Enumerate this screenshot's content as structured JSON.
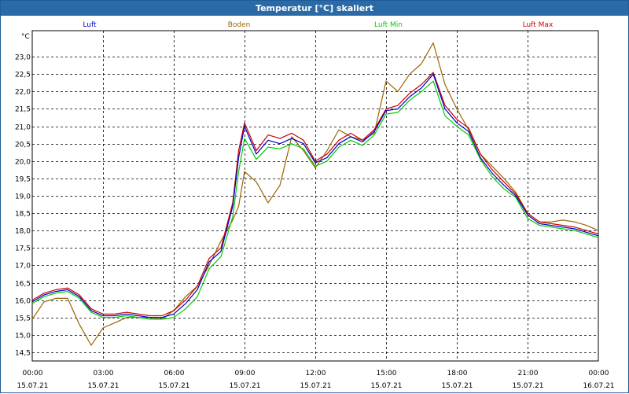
{
  "title": "Temperatur [°C] skaliert",
  "chart_data": {
    "type": "line",
    "title": "Temperatur [°C] skaliert",
    "ylabel": "°C",
    "ylim": [
      14.25,
      23.75
    ],
    "xlim": [
      0,
      24
    ],
    "y_ticks": [
      "14,5",
      "15,0",
      "15,5",
      "16,0",
      "16,5",
      "17,0",
      "17,5",
      "18,0",
      "18,5",
      "19,0",
      "19,5",
      "20,0",
      "20,5",
      "21,0",
      "21,5",
      "22,0",
      "22,5",
      "23,0"
    ],
    "x_ticks": [
      {
        "time": "00:00",
        "date": "15.07.21"
      },
      {
        "time": "03:00",
        "date": "15.07.21"
      },
      {
        "time": "06:00",
        "date": "15.07.21"
      },
      {
        "time": "09:00",
        "date": "15.07.21"
      },
      {
        "time": "12:00",
        "date": "15.07.21"
      },
      {
        "time": "15:00",
        "date": "15.07.21"
      },
      {
        "time": "18:00",
        "date": "15.07.21"
      },
      {
        "time": "21:00",
        "date": "15.07.21"
      },
      {
        "time": "00:00",
        "date": "16.07.21"
      }
    ],
    "series": [
      {
        "name": "Luft",
        "color": "#0000cc",
        "x": [
          0,
          0.5,
          1,
          1.5,
          2,
          2.5,
          3,
          3.5,
          4,
          4.5,
          5,
          5.5,
          6,
          6.5,
          7,
          7.5,
          8,
          8.5,
          8.75,
          9,
          9.5,
          10,
          10.5,
          11,
          11.5,
          12,
          12.5,
          13,
          13.5,
          14,
          14.5,
          15,
          15.5,
          16,
          16.5,
          17,
          17.5,
          18,
          18.5,
          19,
          19.5,
          20,
          20.5,
          21,
          21.5,
          22,
          22.5,
          23,
          23.5,
          24
        ],
        "values": [
          15.95,
          16.15,
          16.25,
          16.3,
          16.1,
          15.7,
          15.55,
          15.55,
          15.6,
          15.55,
          15.5,
          15.5,
          15.6,
          15.9,
          16.3,
          17.1,
          17.4,
          18.7,
          20.1,
          21.0,
          20.2,
          20.6,
          20.5,
          20.65,
          20.5,
          19.95,
          20.1,
          20.5,
          20.7,
          20.55,
          20.85,
          21.45,
          21.5,
          21.85,
          22.1,
          22.5,
          21.5,
          21.1,
          20.85,
          20.1,
          19.65,
          19.3,
          19.0,
          18.45,
          18.2,
          18.15,
          18.1,
          18.05,
          17.95,
          17.85
        ]
      },
      {
        "name": "Boden",
        "color": "#996600",
        "x": [
          0,
          0.5,
          1,
          1.5,
          2,
          2.5,
          3,
          3.5,
          4,
          4.5,
          5,
          5.5,
          6,
          6.5,
          7,
          7.5,
          8,
          8.5,
          8.75,
          9,
          9.5,
          10,
          10.5,
          11,
          11.5,
          12,
          12.5,
          13,
          13.5,
          14,
          14.5,
          15,
          15.5,
          16,
          16.5,
          17,
          17.5,
          18,
          18.5,
          19,
          19.5,
          20,
          20.5,
          21,
          21.5,
          22,
          22.5,
          23,
          23.5,
          24
        ],
        "values": [
          15.45,
          15.95,
          16.05,
          16.05,
          15.3,
          14.7,
          15.2,
          15.35,
          15.5,
          15.5,
          15.5,
          15.45,
          15.7,
          16.1,
          16.4,
          17.0,
          17.7,
          18.3,
          18.7,
          19.7,
          19.4,
          18.8,
          19.3,
          20.7,
          20.3,
          19.8,
          20.3,
          20.9,
          20.7,
          20.6,
          20.8,
          22.3,
          22.0,
          22.5,
          22.8,
          23.4,
          22.2,
          21.5,
          20.9,
          20.2,
          19.85,
          19.5,
          19.1,
          18.5,
          18.25,
          18.25,
          18.3,
          18.25,
          18.15,
          18.0
        ]
      },
      {
        "name": "Luft Min",
        "color": "#00cc00",
        "x": [
          0,
          0.5,
          1,
          1.5,
          2,
          2.5,
          3,
          3.5,
          4,
          4.5,
          5,
          5.5,
          6,
          6.5,
          7,
          7.5,
          8,
          8.5,
          8.75,
          9,
          9.5,
          10,
          10.5,
          11,
          11.5,
          12,
          12.5,
          13,
          13.5,
          14,
          14.5,
          15,
          15.5,
          16,
          16.5,
          17,
          17.5,
          18,
          18.5,
          19,
          19.5,
          20,
          20.5,
          21,
          21.5,
          22,
          22.5,
          23,
          23.5,
          24
        ],
        "values": [
          15.9,
          16.1,
          16.2,
          16.25,
          16.05,
          15.65,
          15.5,
          15.5,
          15.55,
          15.5,
          15.45,
          15.45,
          15.5,
          15.75,
          16.1,
          16.9,
          17.25,
          18.4,
          19.7,
          20.65,
          20.05,
          20.4,
          20.35,
          20.5,
          20.35,
          19.85,
          20.0,
          20.4,
          20.6,
          20.45,
          20.75,
          21.35,
          21.4,
          21.75,
          22.0,
          22.3,
          21.3,
          21.0,
          20.75,
          20.05,
          19.55,
          19.2,
          18.95,
          18.35,
          18.15,
          18.1,
          18.05,
          18.0,
          17.9,
          17.8
        ]
      },
      {
        "name": "Luft Max",
        "color": "#cc0000",
        "x": [
          0,
          0.5,
          1,
          1.5,
          2,
          2.5,
          3,
          3.5,
          4,
          4.5,
          5,
          5.5,
          6,
          6.5,
          7,
          7.5,
          8,
          8.5,
          8.75,
          9,
          9.5,
          10,
          10.5,
          11,
          11.5,
          12,
          12.5,
          13,
          13.5,
          14,
          14.5,
          15,
          15.5,
          16,
          16.5,
          17,
          17.5,
          18,
          18.5,
          19,
          19.5,
          20,
          20.5,
          21,
          21.5,
          22,
          22.5,
          23,
          23.5,
          24
        ],
        "values": [
          16.0,
          16.2,
          16.3,
          16.35,
          16.15,
          15.75,
          15.6,
          15.6,
          15.65,
          15.6,
          15.55,
          15.55,
          15.7,
          16.0,
          16.4,
          17.2,
          17.5,
          18.8,
          20.3,
          21.1,
          20.3,
          20.75,
          20.65,
          20.8,
          20.6,
          20.0,
          20.2,
          20.6,
          20.8,
          20.6,
          20.9,
          21.5,
          21.6,
          21.95,
          22.2,
          22.55,
          21.6,
          21.2,
          20.95,
          20.2,
          19.75,
          19.4,
          19.05,
          18.5,
          18.25,
          18.2,
          18.15,
          18.1,
          18.0,
          17.9
        ]
      }
    ]
  }
}
